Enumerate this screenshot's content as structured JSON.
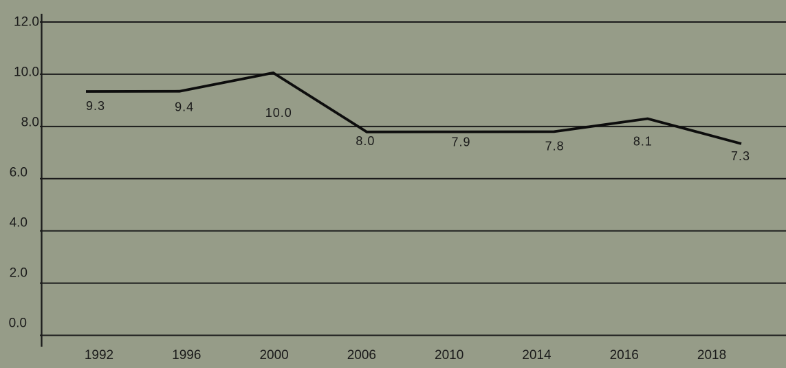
{
  "chart_data": {
    "type": "line",
    "title": "",
    "categories": [
      "1992",
      "1996",
      "2000",
      "2006",
      "2010",
      "2014",
      "2016",
      "2018"
    ],
    "values": [
      9.3,
      9.4,
      10.0,
      8.0,
      7.9,
      7.8,
      8.1,
      7.3
    ],
    "data_labels": [
      "9.3",
      "9.4",
      "10.0",
      "8.0",
      "7.9",
      "7.8",
      "8.1",
      "7.3"
    ],
    "y_tick_labels": [
      "12.0",
      "10.0",
      "8.0",
      "6.0",
      "4.0",
      "2.0",
      "0.0"
    ],
    "y_tick_values": [
      12,
      10,
      8,
      6,
      4,
      2,
      0
    ],
    "ylim": [
      0,
      12
    ],
    "grid": true,
    "legend": "none",
    "colors": {
      "background": "#969c88",
      "line": "#0d0d0d",
      "grid": "#1b1b1b",
      "axis": "#1b1b1b",
      "text": "#1a1a1a"
    }
  }
}
